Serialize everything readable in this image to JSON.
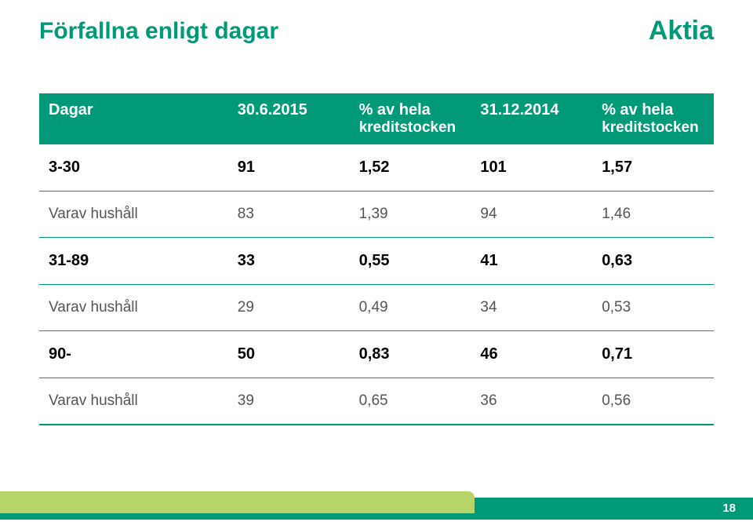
{
  "colors": {
    "brand": "#009a78",
    "header_bg": "#009a78",
    "divider": "#009a78",
    "bottom_line": "#009a78",
    "bar_main": "#009a78",
    "bar_accent": "#b6d468",
    "title_text": "#009a78",
    "brand_text": "#009a78"
  },
  "title": "Förfallna enligt dagar",
  "brand": "Aktia",
  "table": {
    "headers": {
      "c0": "Dagar",
      "c1": "30.6.2015",
      "c2_line1": "% av hela",
      "c2_line2": "kreditstocken",
      "c3": "31.12.2014",
      "c4_line1": "% av hela",
      "c4_line2": "kreditstocken"
    },
    "rows": [
      {
        "type": "bold",
        "c0": "3-30",
        "c1": "91",
        "c2": "1,52",
        "c3": "101",
        "c4": "1,57"
      },
      {
        "type": "sub",
        "c0": "Varav hushåll",
        "c1": "83",
        "c2": "1,39",
        "c3": "94",
        "c4": "1,46"
      },
      {
        "type": "bold",
        "c0": "31-89",
        "c1": "33",
        "c2": "0,55",
        "c3": "41",
        "c4": "0,63"
      },
      {
        "type": "sub",
        "c0": "Varav hushåll",
        "c1": "29",
        "c2": "0,49",
        "c3": "34",
        "c4": "0,53"
      },
      {
        "type": "bold",
        "c0": "90-",
        "c1": "50",
        "c2": "0,83",
        "c3": "46",
        "c4": "0,71"
      },
      {
        "type": "sub",
        "c0": "Varav hushåll",
        "c1": "39",
        "c2": "0,65",
        "c3": "36",
        "c4": "0,56"
      }
    ]
  },
  "page_number": "18"
}
